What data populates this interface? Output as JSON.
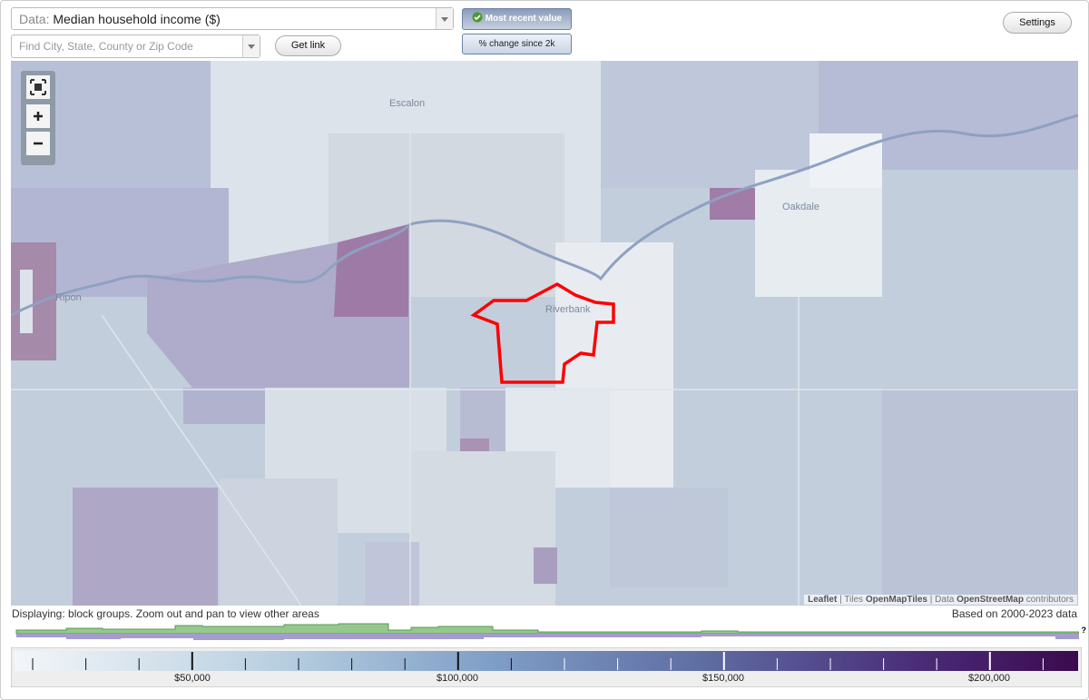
{
  "controls": {
    "data_label": "Data:",
    "data_value": "Median household income ($)",
    "search_placeholder": "Find City, State, County or Zip Code",
    "get_link": "Get link",
    "most_recent": "Most recent value",
    "change_since": "% change since 2k",
    "settings": "Settings"
  },
  "map": {
    "places": [
      "Escalon",
      "Oakdale",
      "Ripon",
      "Riverbank"
    ],
    "attribution": [
      "Leaflet",
      " | Tiles ",
      "OpenMapTiles",
      " | Data ",
      "OpenStreetMap",
      " contributors"
    ]
  },
  "footer": {
    "displaying": "Displaying: block groups. Zoom out and pan to view other areas",
    "based_on": "Based on 2000-2023 data",
    "help": "?"
  },
  "legend": {
    "labels": [
      "$50,000",
      "$100,000",
      "$150,000",
      "$200,000"
    ]
  }
}
